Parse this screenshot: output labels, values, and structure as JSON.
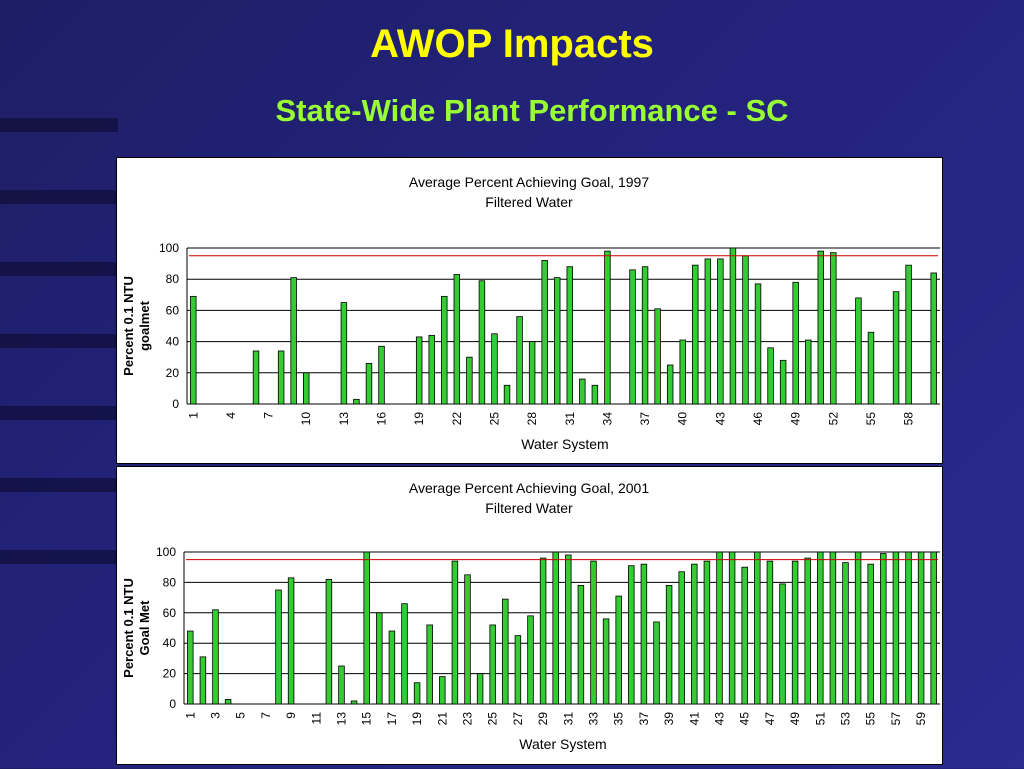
{
  "slide": {
    "title": "AWOP Impacts",
    "subtitle": "State-Wide Plant Performance - SC"
  },
  "colors": {
    "bar": "#33cc33",
    "bar_stroke": "#000000",
    "goal_line": "#cc0000",
    "title": "#ffff00",
    "subtitle": "#99ff33"
  },
  "chart_data": [
    {
      "type": "bar",
      "title": "Average Percent Achieving Goal, 1997",
      "subtitle": "Filtered Water",
      "xlabel": "Water System",
      "ylabel": [
        "Percent 0.1 NTU",
        "goalmet"
      ],
      "ylim": [
        0,
        100
      ],
      "yticks": [
        0,
        20,
        40,
        60,
        80,
        100
      ],
      "goal_line": 95,
      "grid": true,
      "categories": [
        1,
        2,
        3,
        4,
        5,
        6,
        7,
        8,
        9,
        10,
        11,
        12,
        13,
        14,
        15,
        16,
        17,
        18,
        19,
        20,
        21,
        22,
        23,
        24,
        25,
        26,
        27,
        28,
        29,
        30,
        31,
        32,
        33,
        34,
        35,
        36,
        37,
        38,
        39,
        40,
        41,
        42,
        43,
        44,
        45,
        46,
        47,
        48,
        49,
        50,
        51,
        52,
        53,
        54,
        55,
        56,
        57,
        58,
        59,
        60
      ],
      "xtick_labels": [
        "1",
        "4",
        "7",
        "10",
        "13",
        "16",
        "19",
        "22",
        "25",
        "28",
        "31",
        "34",
        "37",
        "40",
        "43",
        "46",
        "49",
        "52",
        "55",
        "58"
      ],
      "values": [
        69,
        0,
        0,
        0,
        0,
        34,
        0,
        34,
        81,
        20,
        0,
        0,
        65,
        3,
        26,
        37,
        0,
        0,
        43,
        44,
        69,
        83,
        30,
        79,
        45,
        12,
        56,
        40,
        92,
        81,
        88,
        16,
        12,
        98,
        0,
        86,
        88,
        61,
        25,
        41,
        89,
        93,
        93,
        100,
        95,
        77,
        36,
        28,
        78,
        41,
        98,
        97,
        0,
        68,
        46,
        0,
        72,
        89,
        0,
        84
      ]
    },
    {
      "type": "bar",
      "title": "Average Percent Achieving Goal, 2001",
      "subtitle": "Filtered Water",
      "xlabel": "Water System",
      "ylabel": [
        "Percent 0.1 NTU",
        "Goal Met"
      ],
      "ylim": [
        0,
        100
      ],
      "yticks": [
        0,
        20,
        40,
        60,
        80,
        100
      ],
      "goal_line": 95,
      "grid": true,
      "categories": [
        1,
        2,
        3,
        4,
        5,
        6,
        7,
        8,
        9,
        10,
        11,
        12,
        13,
        14,
        15,
        16,
        17,
        18,
        19,
        20,
        21,
        22,
        23,
        24,
        25,
        26,
        27,
        28,
        29,
        30,
        31,
        32,
        33,
        34,
        35,
        36,
        37,
        38,
        39,
        40,
        41,
        42,
        43,
        44,
        45,
        46,
        47,
        48,
        49,
        50,
        51,
        52,
        53,
        54,
        55,
        56,
        57,
        58,
        59,
        60
      ],
      "xtick_labels": [
        "1",
        "3",
        "5",
        "7",
        "9",
        "11",
        "13",
        "15",
        "17",
        "19",
        "21",
        "23",
        "25",
        "27",
        "29",
        "31",
        "33",
        "35",
        "37",
        "39",
        "41",
        "43",
        "45",
        "47",
        "49",
        "51",
        "53",
        "55",
        "57",
        "59"
      ],
      "values": [
        48,
        31,
        62,
        3,
        0,
        0,
        0,
        75,
        83,
        0,
        0,
        82,
        25,
        2,
        100,
        60,
        48,
        66,
        14,
        52,
        18,
        94,
        85,
        20,
        52,
        69,
        45,
        58,
        96,
        100,
        98,
        78,
        94,
        56,
        71,
        91,
        92,
        54,
        78,
        87,
        92,
        94,
        100,
        100,
        90,
        100,
        94,
        79,
        94,
        96,
        100,
        100,
        93,
        100,
        92,
        99,
        100,
        100,
        100,
        100
      ]
    }
  ]
}
